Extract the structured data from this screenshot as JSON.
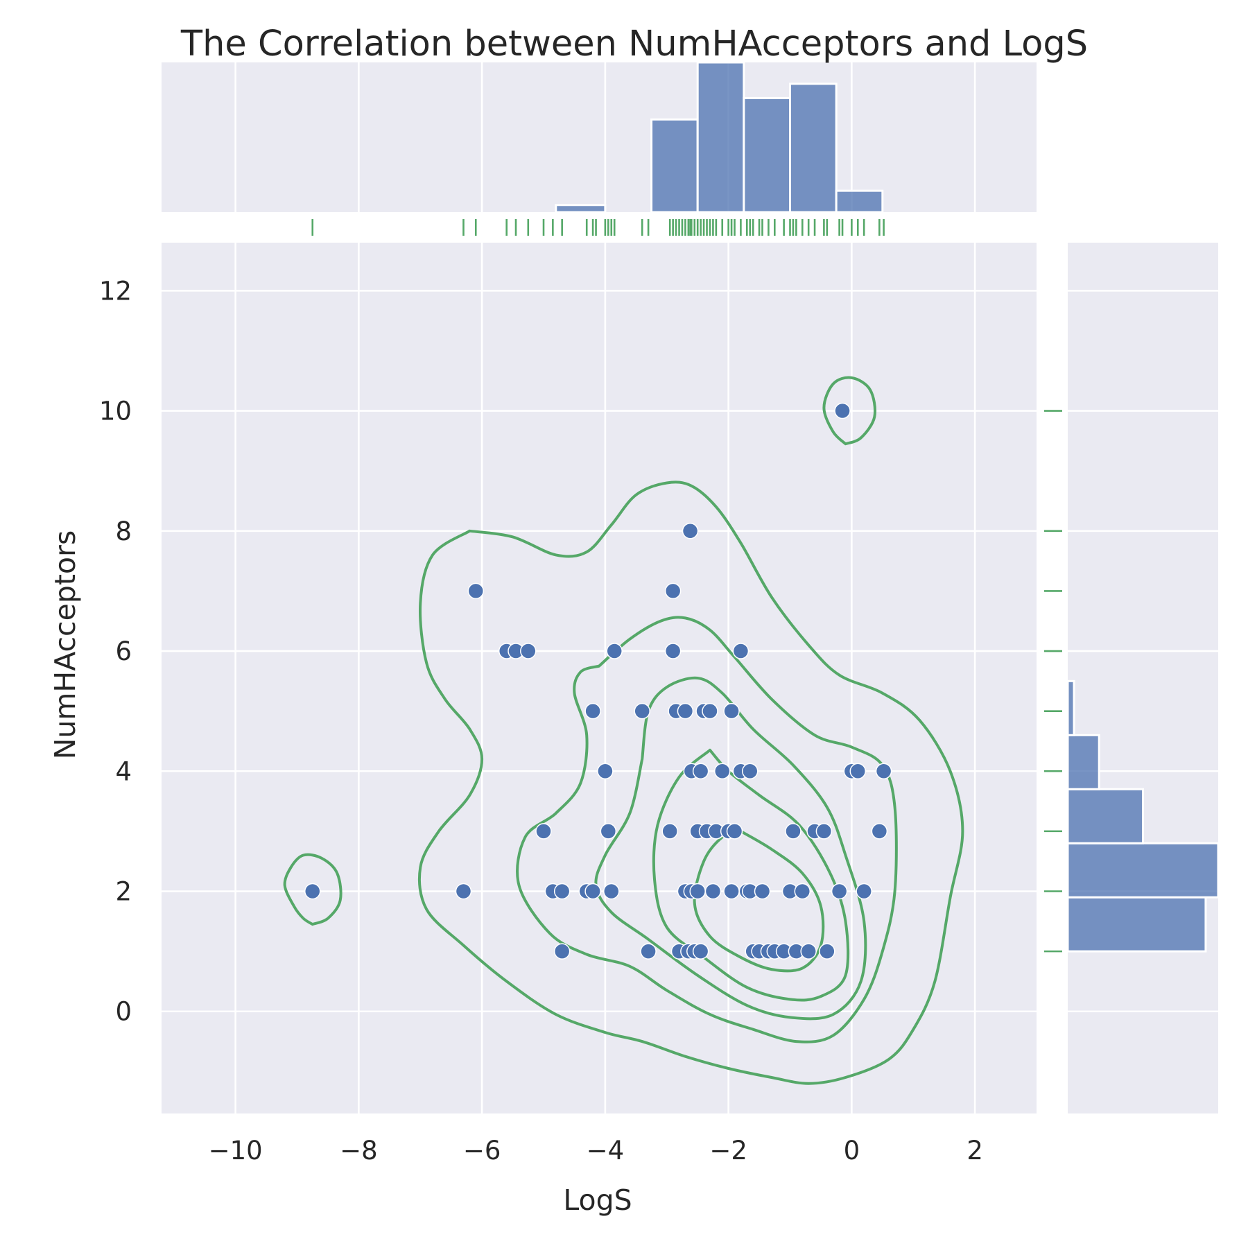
{
  "chart_data": {
    "type": "scatter",
    "title": "The Correlation between NumHAcceptors and LogS",
    "xlabel": "LogS",
    "ylabel": "NumHAcceptors",
    "xlim": [
      -11.2,
      3.0
    ],
    "ylim": [
      -1.7,
      12.8
    ],
    "xticks": [
      -10,
      -8,
      -6,
      -4,
      -2,
      0,
      2
    ],
    "yticks": [
      0,
      2,
      4,
      6,
      8,
      10,
      12
    ],
    "xtick_labels": [
      "−10",
      "−8",
      "−6",
      "−4",
      "−2",
      "0",
      "2"
    ],
    "ytick_labels": [
      "0",
      "2",
      "4",
      "6",
      "8",
      "10",
      "12"
    ],
    "grid": true,
    "colors": {
      "points": "#4c72b0",
      "bars": "#4c72b0",
      "rug": "#55a868",
      "kde": "#55a868",
      "panel": "#eaeaf2"
    },
    "points": [
      [
        -8.75,
        2
      ],
      [
        -6.3,
        2
      ],
      [
        -6.1,
        7
      ],
      [
        -5.6,
        6
      ],
      [
        -5.45,
        6
      ],
      [
        -5.25,
        6
      ],
      [
        -5.0,
        3
      ],
      [
        -4.85,
        2
      ],
      [
        -4.7,
        2
      ],
      [
        -4.7,
        1
      ],
      [
        -4.3,
        2
      ],
      [
        -4.2,
        2
      ],
      [
        -4.2,
        5
      ],
      [
        -4.0,
        4
      ],
      [
        -3.95,
        3
      ],
      [
        -3.9,
        2
      ],
      [
        -3.85,
        6
      ],
      [
        -3.4,
        5
      ],
      [
        -3.3,
        1
      ],
      [
        -2.95,
        3
      ],
      [
        -2.9,
        7
      ],
      [
        -2.9,
        6
      ],
      [
        -2.85,
        5
      ],
      [
        -2.8,
        1
      ],
      [
        -2.7,
        5
      ],
      [
        -2.7,
        2
      ],
      [
        -2.65,
        1
      ],
      [
        -2.62,
        8
      ],
      [
        -2.6,
        4
      ],
      [
        -2.6,
        2
      ],
      [
        -2.55,
        1
      ],
      [
        -2.5,
        3
      ],
      [
        -2.5,
        2
      ],
      [
        -2.45,
        4
      ],
      [
        -2.45,
        1
      ],
      [
        -2.4,
        5
      ],
      [
        -2.35,
        3
      ],
      [
        -2.3,
        5
      ],
      [
        -2.25,
        2
      ],
      [
        -2.2,
        3
      ],
      [
        -2.1,
        4
      ],
      [
        -2.0,
        3
      ],
      [
        -1.95,
        2
      ],
      [
        -1.95,
        5
      ],
      [
        -1.9,
        3
      ],
      [
        -1.8,
        4
      ],
      [
        -1.8,
        6
      ],
      [
        -1.7,
        2
      ],
      [
        -1.65,
        4
      ],
      [
        -1.65,
        2
      ],
      [
        -1.6,
        1
      ],
      [
        -1.5,
        1
      ],
      [
        -1.45,
        2
      ],
      [
        -1.35,
        1
      ],
      [
        -1.25,
        1
      ],
      [
        -1.1,
        1
      ],
      [
        -1.0,
        2
      ],
      [
        -0.95,
        3
      ],
      [
        -0.9,
        1
      ],
      [
        -0.8,
        2
      ],
      [
        -0.7,
        1
      ],
      [
        -0.6,
        3
      ],
      [
        -0.45,
        3
      ],
      [
        -0.4,
        1
      ],
      [
        -0.2,
        2
      ],
      [
        -0.15,
        10
      ],
      [
        0.0,
        4
      ],
      [
        0.1,
        4
      ],
      [
        0.2,
        2
      ],
      [
        0.45,
        3
      ],
      [
        0.52,
        4
      ]
    ],
    "marginal_x": {
      "type": "histogram",
      "bins": [
        {
          "range": [
            -4.8,
            -4.0
          ],
          "count": 1
        },
        {
          "range": [
            -4.0,
            -3.25
          ],
          "count": 0
        },
        {
          "range": [
            -3.25,
            -2.5
          ],
          "count": 13
        },
        {
          "range": [
            -2.5,
            -1.75
          ],
          "count": 21
        },
        {
          "range": [
            -1.75,
            -1.0
          ],
          "count": 16
        },
        {
          "range": [
            -1.0,
            -0.25
          ],
          "count": 18
        },
        {
          "range": [
            -0.25,
            0.5
          ],
          "count": 3
        }
      ]
    },
    "marginal_y": {
      "type": "histogram",
      "bins": [
        {
          "range": [
            1,
            1.9
          ],
          "count": 22
        },
        {
          "range": [
            1.9,
            2.8
          ],
          "count": 24
        },
        {
          "range": [
            2.8,
            3.7
          ],
          "count": 12
        },
        {
          "range": [
            3.7,
            4.6
          ],
          "count": 5
        },
        {
          "range": [
            4.6,
            5.5
          ],
          "count": 1
        }
      ]
    },
    "rug_x": [
      -8.75,
      -6.3,
      -6.1,
      -5.6,
      -5.45,
      -5.25,
      -5.0,
      -4.85,
      -4.7,
      -4.3,
      -4.2,
      -4.15,
      -4.0,
      -3.95,
      -3.9,
      -3.85,
      -3.4,
      -3.3,
      -2.95,
      -2.9,
      -2.85,
      -2.8,
      -2.75,
      -2.7,
      -2.65,
      -2.62,
      -2.6,
      -2.55,
      -2.5,
      -2.45,
      -2.4,
      -2.35,
      -2.3,
      -2.25,
      -2.2,
      -2.1,
      -2.0,
      -1.95,
      -1.9,
      -1.8,
      -1.7,
      -1.65,
      -1.6,
      -1.5,
      -1.45,
      -1.35,
      -1.25,
      -1.1,
      -1.0,
      -0.95,
      -0.9,
      -0.8,
      -0.7,
      -0.6,
      -0.45,
      -0.4,
      -0.2,
      -0.15,
      0.0,
      0.1,
      0.2,
      0.45,
      0.52
    ],
    "rug_y": [
      1,
      2,
      3,
      4,
      5,
      6,
      7,
      8,
      10
    ],
    "kde_contours": [
      [
        [
          -8.75,
          1.45
        ],
        [
          -8.5,
          1.55
        ],
        [
          -8.3,
          1.85
        ],
        [
          -8.35,
          2.3
        ],
        [
          -8.6,
          2.55
        ],
        [
          -8.9,
          2.6
        ],
        [
          -9.1,
          2.4
        ],
        [
          -9.2,
          2.1
        ],
        [
          -9.05,
          1.75
        ],
        [
          -8.9,
          1.55
        ],
        [
          -8.75,
          1.45
        ]
      ],
      [
        [
          -0.1,
          9.45
        ],
        [
          0.15,
          9.55
        ],
        [
          0.37,
          9.9
        ],
        [
          0.3,
          10.35
        ],
        [
          0.0,
          10.55
        ],
        [
          -0.3,
          10.45
        ],
        [
          -0.45,
          10.05
        ],
        [
          -0.3,
          9.65
        ],
        [
          -0.1,
          9.45
        ]
      ],
      [
        [
          -6.2,
          8.0
        ],
        [
          -5.5,
          7.9
        ],
        [
          -4.8,
          7.6
        ],
        [
          -4.3,
          7.65
        ],
        [
          -3.9,
          8.1
        ],
        [
          -3.5,
          8.6
        ],
        [
          -3.0,
          8.8
        ],
        [
          -2.6,
          8.75
        ],
        [
          -2.2,
          8.4
        ],
        [
          -1.8,
          7.8
        ],
        [
          -1.3,
          6.9
        ],
        [
          -0.7,
          6.1
        ],
        [
          -0.2,
          5.6
        ],
        [
          0.5,
          5.3
        ],
        [
          1.1,
          4.85
        ],
        [
          1.6,
          4.0
        ],
        [
          1.8,
          3.0
        ],
        [
          1.6,
          1.9
        ],
        [
          1.35,
          0.5
        ],
        [
          1.0,
          -0.3
        ],
        [
          0.6,
          -0.8
        ],
        [
          -0.1,
          -1.1
        ],
        [
          -0.7,
          -1.2
        ],
        [
          -1.3,
          -1.1
        ],
        [
          -2.0,
          -0.95
        ],
        [
          -2.7,
          -0.75
        ],
        [
          -3.4,
          -0.5
        ],
        [
          -4.0,
          -0.35
        ],
        [
          -4.8,
          -0.05
        ],
        [
          -5.6,
          0.5
        ],
        [
          -6.3,
          1.1
        ],
        [
          -6.9,
          1.7
        ],
        [
          -7.0,
          2.4
        ],
        [
          -6.7,
          3.0
        ],
        [
          -6.2,
          3.6
        ],
        [
          -6.0,
          4.2
        ],
        [
          -6.2,
          4.7
        ],
        [
          -6.6,
          5.2
        ],
        [
          -6.9,
          5.8
        ],
        [
          -7.0,
          6.8
        ],
        [
          -6.8,
          7.6
        ],
        [
          -6.2,
          8.0
        ]
      ],
      [
        [
          -4.1,
          5.75
        ],
        [
          -3.6,
          6.2
        ],
        [
          -3.1,
          6.5
        ],
        [
          -2.7,
          6.55
        ],
        [
          -2.3,
          6.35
        ],
        [
          -1.9,
          5.9
        ],
        [
          -1.3,
          5.2
        ],
        [
          -0.6,
          4.6
        ],
        [
          0.0,
          4.4
        ],
        [
          0.5,
          4.1
        ],
        [
          0.7,
          3.4
        ],
        [
          0.7,
          2.0
        ],
        [
          0.5,
          1.0
        ],
        [
          0.2,
          0.2
        ],
        [
          -0.3,
          -0.4
        ],
        [
          -0.9,
          -0.5
        ],
        [
          -1.6,
          -0.3
        ],
        [
          -2.3,
          -0.05
        ],
        [
          -3.0,
          0.35
        ],
        [
          -3.6,
          0.75
        ],
        [
          -4.3,
          0.95
        ],
        [
          -4.9,
          1.3
        ],
        [
          -5.4,
          2.1
        ],
        [
          -5.3,
          2.9
        ],
        [
          -4.8,
          3.3
        ],
        [
          -4.4,
          3.8
        ],
        [
          -4.3,
          4.6
        ],
        [
          -4.5,
          5.3
        ],
        [
          -4.4,
          5.65
        ],
        [
          -4.1,
          5.75
        ]
      ],
      [
        [
          -3.4,
          4.2
        ],
        [
          -3.3,
          5.0
        ],
        [
          -3.0,
          5.4
        ],
        [
          -2.5,
          5.55
        ],
        [
          -2.1,
          5.3
        ],
        [
          -1.6,
          4.7
        ],
        [
          -0.95,
          4.1
        ],
        [
          -0.4,
          3.4
        ],
        [
          -0.1,
          2.6
        ],
        [
          0.2,
          1.5
        ],
        [
          0.15,
          0.5
        ],
        [
          -0.3,
          -0.05
        ],
        [
          -1.0,
          -0.1
        ],
        [
          -1.7,
          0.1
        ],
        [
          -2.5,
          0.6
        ],
        [
          -3.3,
          1.2
        ],
        [
          -3.9,
          1.65
        ],
        [
          -4.15,
          2.1
        ],
        [
          -4.0,
          2.6
        ],
        [
          -3.6,
          3.3
        ],
        [
          -3.4,
          4.2
        ]
      ],
      [
        [
          -2.3,
          4.35
        ],
        [
          -2.0,
          4.0
        ],
        [
          -1.5,
          3.6
        ],
        [
          -0.85,
          3.1
        ],
        [
          -0.35,
          2.3
        ],
        [
          -0.1,
          1.5
        ],
        [
          -0.1,
          0.6
        ],
        [
          -0.5,
          0.25
        ],
        [
          -1.0,
          0.2
        ],
        [
          -1.7,
          0.4
        ],
        [
          -2.4,
          0.9
        ],
        [
          -3.0,
          1.4
        ],
        [
          -3.2,
          2.2
        ],
        [
          -3.15,
          3.1
        ],
        [
          -2.8,
          3.9
        ],
        [
          -2.3,
          4.35
        ]
      ],
      [
        [
          -1.8,
          3.0
        ],
        [
          -1.3,
          2.7
        ],
        [
          -0.8,
          2.3
        ],
        [
          -0.5,
          1.75
        ],
        [
          -0.5,
          1.1
        ],
        [
          -0.8,
          0.72
        ],
        [
          -1.3,
          0.7
        ],
        [
          -1.8,
          0.9
        ],
        [
          -2.3,
          1.25
        ],
        [
          -2.55,
          1.8
        ],
        [
          -2.4,
          2.5
        ],
        [
          -2.1,
          2.9
        ],
        [
          -1.8,
          3.0
        ]
      ]
    ]
  }
}
